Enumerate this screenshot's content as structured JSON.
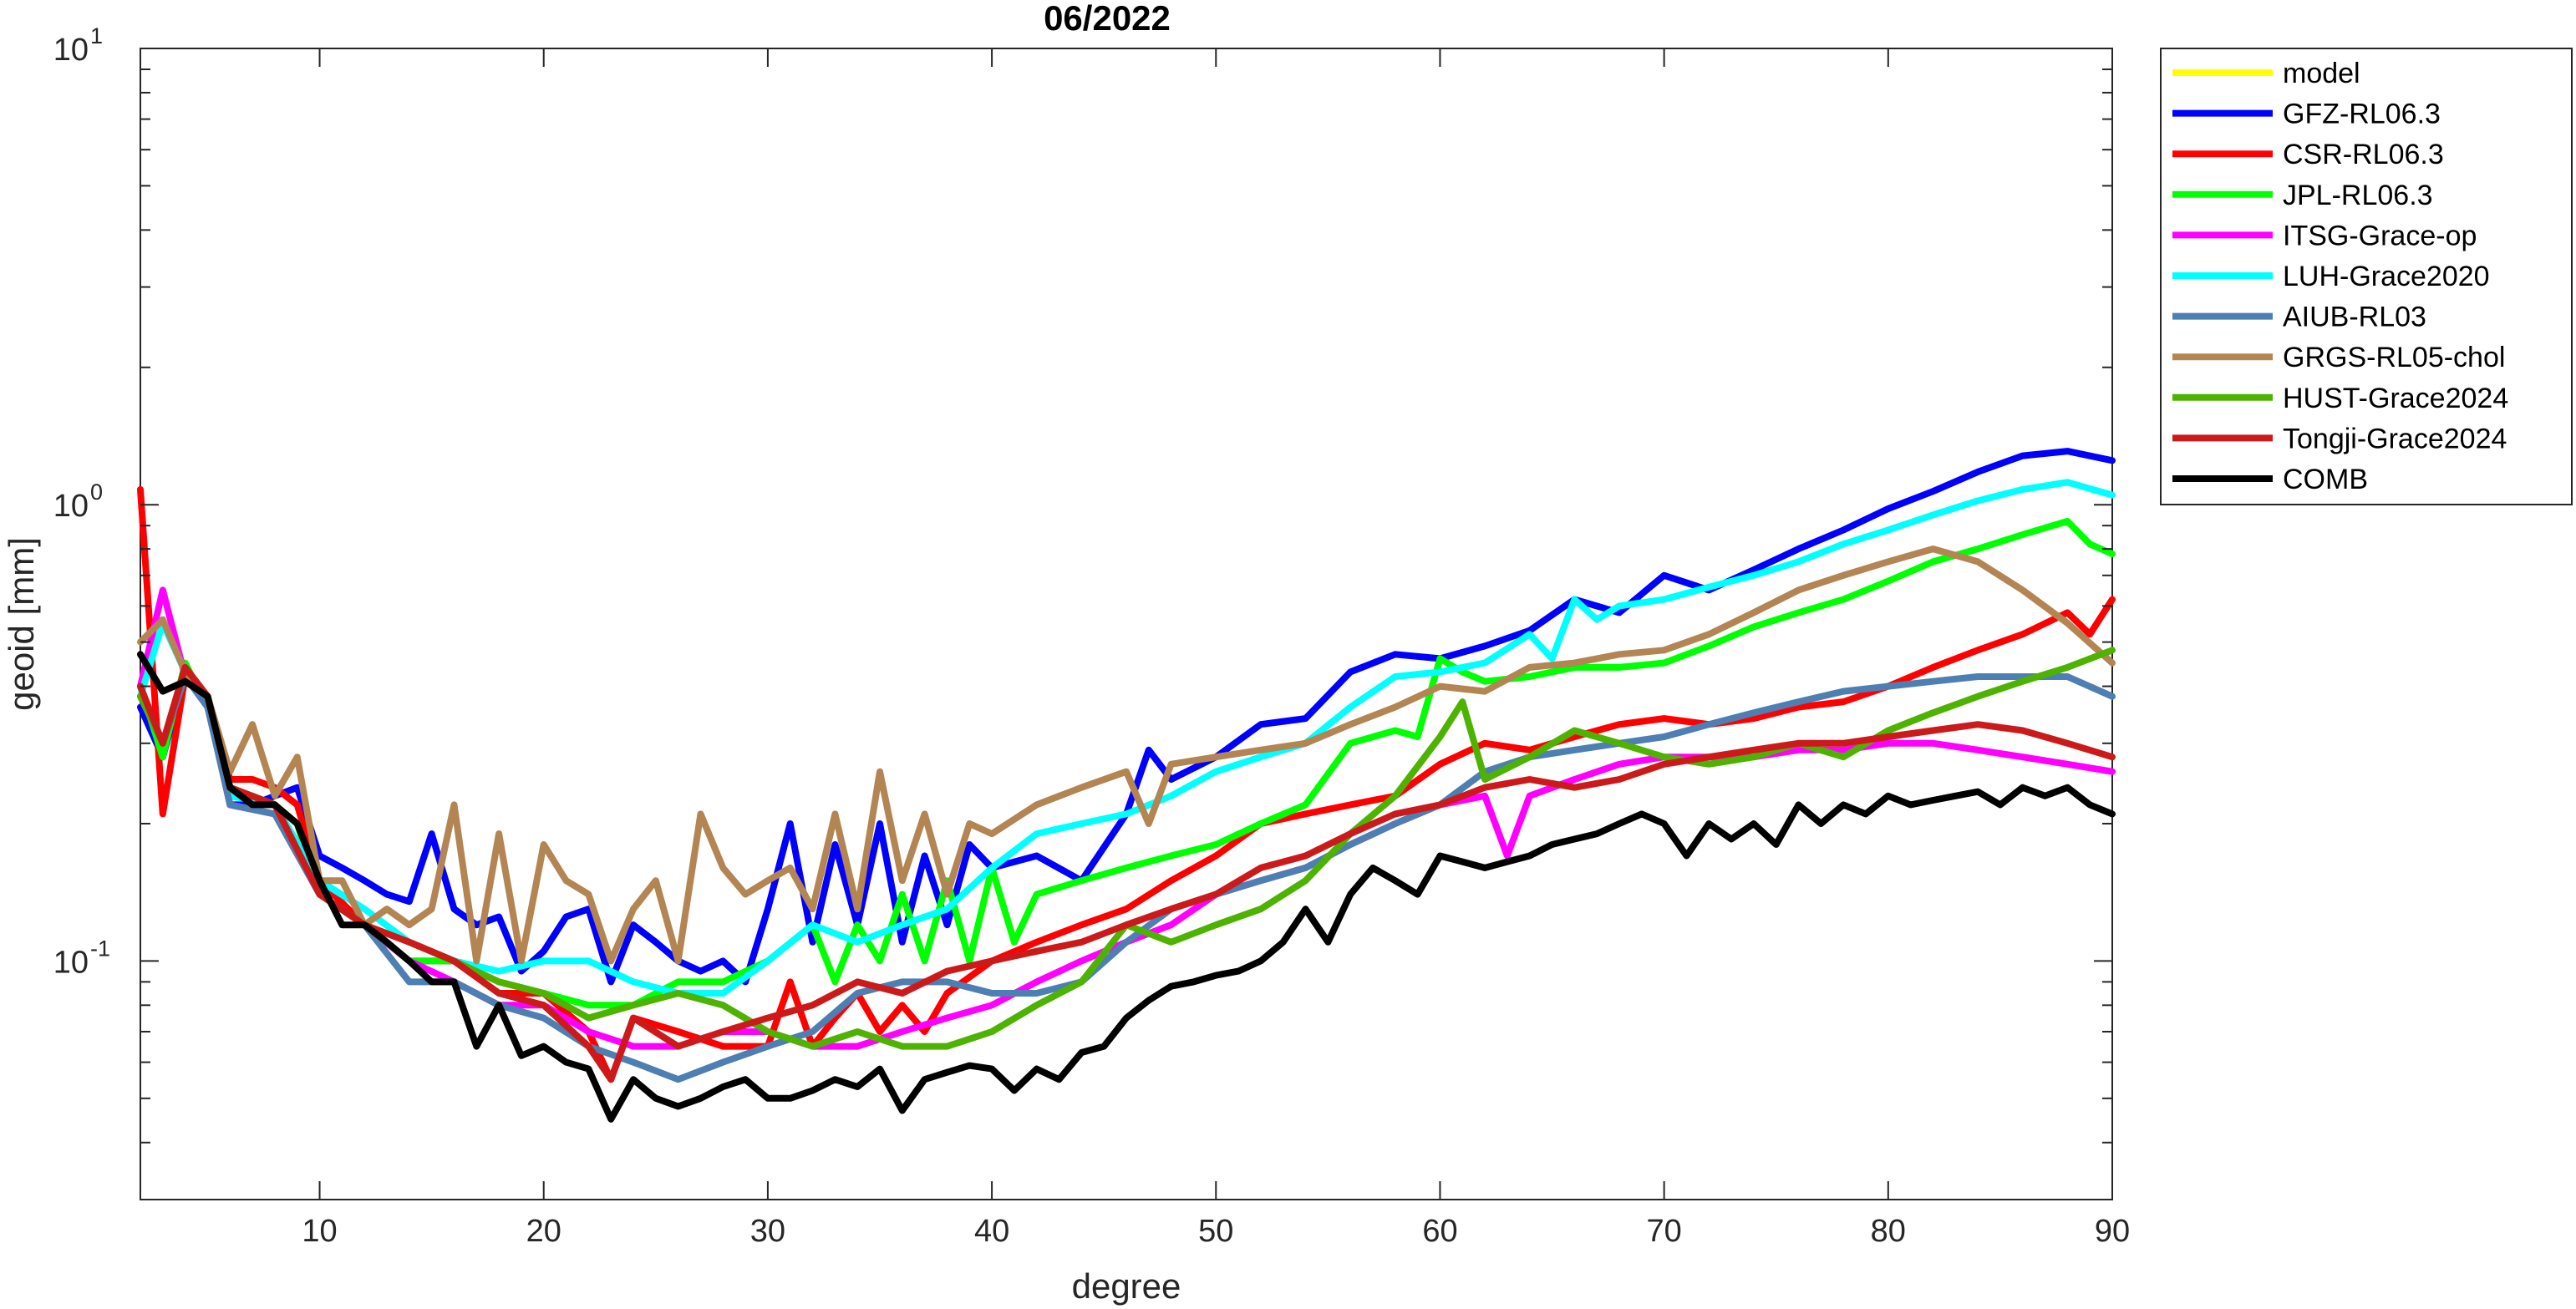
{
  "chart_data": {
    "type": "line",
    "title": "06/2022",
    "xlabel": "degree",
    "ylabel": "geoid [mm]",
    "xlim": [
      2,
      90
    ],
    "ylim": [
      0.03,
      10
    ],
    "yscale": "log",
    "x_ticks": [
      10,
      20,
      30,
      40,
      50,
      60,
      70,
      80,
      90
    ],
    "y_ticks": [
      {
        "value": 0.1,
        "base": "10",
        "exp": "-1"
      },
      {
        "value": 1,
        "base": "10",
        "exp": "0"
      },
      {
        "value": 10,
        "base": "10",
        "exp": "1"
      }
    ],
    "grid": false,
    "legend_position": "outside-top-right",
    "series": [
      {
        "name": "model",
        "color": "#ffff00",
        "x": [],
        "y": []
      },
      {
        "name": "GFZ-RL06.3",
        "color": "#0000ff",
        "x": [
          2,
          3,
          4,
          5,
          6,
          7,
          8,
          9,
          10,
          11,
          12,
          13,
          14,
          15,
          16,
          17,
          18,
          19,
          20,
          21,
          22,
          23,
          24,
          25,
          26,
          27,
          28,
          29,
          30,
          31,
          32,
          33,
          34,
          35,
          36,
          37,
          38,
          39,
          40,
          42,
          44,
          46,
          47,
          48,
          50,
          52,
          54,
          56,
          58,
          60,
          62,
          64,
          66,
          68,
          70,
          72,
          74,
          76,
          78,
          80,
          82,
          84,
          86,
          88,
          90
        ],
        "y": [
          0.36,
          0.28,
          0.42,
          0.37,
          0.22,
          0.22,
          0.23,
          0.24,
          0.17,
          0.16,
          0.15,
          0.14,
          0.135,
          0.19,
          0.13,
          0.12,
          0.125,
          0.095,
          0.105,
          0.125,
          0.13,
          0.09,
          0.12,
          0.11,
          0.1,
          0.095,
          0.1,
          0.09,
          0.13,
          0.2,
          0.11,
          0.18,
          0.12,
          0.2,
          0.11,
          0.17,
          0.12,
          0.18,
          0.16,
          0.17,
          0.15,
          0.21,
          0.29,
          0.25,
          0.28,
          0.33,
          0.34,
          0.43,
          0.47,
          0.46,
          0.49,
          0.53,
          0.62,
          0.58,
          0.7,
          0.65,
          0.72,
          0.8,
          0.88,
          0.98,
          1.07,
          1.18,
          1.28,
          1.31,
          1.25
        ]
      },
      {
        "name": "CSR-RL06.3",
        "color": "#ff0000",
        "x": [
          2,
          3,
          4,
          5,
          6,
          7,
          8,
          9,
          10,
          12,
          14,
          16,
          18,
          20,
          22,
          23,
          24,
          26,
          28,
          30,
          31,
          32,
          33,
          34,
          35,
          36,
          37,
          38,
          40,
          42,
          44,
          46,
          48,
          50,
          52,
          54,
          56,
          58,
          60,
          62,
          64,
          66,
          68,
          70,
          72,
          74,
          76,
          78,
          80,
          82,
          84,
          86,
          88,
          89,
          90
        ],
        "y": [
          1.08,
          0.21,
          0.42,
          0.38,
          0.25,
          0.25,
          0.24,
          0.22,
          0.15,
          0.12,
          0.1,
          0.1,
          0.085,
          0.085,
          0.07,
          0.055,
          0.075,
          0.07,
          0.065,
          0.065,
          0.09,
          0.065,
          0.075,
          0.085,
          0.07,
          0.08,
          0.07,
          0.085,
          0.1,
          0.11,
          0.12,
          0.13,
          0.15,
          0.17,
          0.2,
          0.21,
          0.22,
          0.23,
          0.27,
          0.3,
          0.29,
          0.31,
          0.33,
          0.34,
          0.33,
          0.34,
          0.36,
          0.37,
          0.4,
          0.44,
          0.48,
          0.52,
          0.58,
          0.52,
          0.62
        ]
      },
      {
        "name": "JPL-RL06.3",
        "color": "#00ff00",
        "x": [
          2,
          3,
          4,
          5,
          6,
          7,
          8,
          9,
          10,
          12,
          14,
          16,
          18,
          20,
          22,
          24,
          26,
          28,
          30,
          32,
          33,
          34,
          35,
          36,
          37,
          38,
          39,
          40,
          41,
          42,
          44,
          46,
          48,
          50,
          52,
          54,
          56,
          58,
          59,
          60,
          61,
          62,
          64,
          66,
          68,
          70,
          72,
          74,
          76,
          78,
          80,
          82,
          84,
          86,
          88,
          89,
          90
        ],
        "y": [
          0.4,
          0.28,
          0.45,
          0.36,
          0.23,
          0.23,
          0.22,
          0.2,
          0.14,
          0.12,
          0.1,
          0.1,
          0.09,
          0.085,
          0.08,
          0.08,
          0.09,
          0.09,
          0.1,
          0.12,
          0.09,
          0.12,
          0.1,
          0.14,
          0.1,
          0.15,
          0.1,
          0.16,
          0.11,
          0.14,
          0.15,
          0.16,
          0.17,
          0.18,
          0.2,
          0.22,
          0.3,
          0.32,
          0.31,
          0.46,
          0.43,
          0.41,
          0.42,
          0.44,
          0.44,
          0.45,
          0.49,
          0.54,
          0.58,
          0.62,
          0.68,
          0.75,
          0.8,
          0.86,
          0.92,
          0.82,
          0.78
        ]
      },
      {
        "name": "ITSG-Grace-op",
        "color": "#ff00ff",
        "x": [
          2,
          3,
          4,
          5,
          6,
          8,
          10,
          12,
          14,
          16,
          18,
          20,
          22,
          24,
          26,
          28,
          30,
          32,
          34,
          36,
          38,
          40,
          42,
          44,
          46,
          48,
          50,
          52,
          54,
          56,
          58,
          60,
          62,
          63,
          64,
          66,
          68,
          70,
          72,
          74,
          76,
          78,
          80,
          82,
          84,
          86,
          88,
          90
        ],
        "y": [
          0.4,
          0.65,
          0.42,
          0.37,
          0.22,
          0.21,
          0.14,
          0.12,
          0.1,
          0.09,
          0.08,
          0.08,
          0.07,
          0.065,
          0.065,
          0.07,
          0.07,
          0.065,
          0.065,
          0.07,
          0.075,
          0.08,
          0.09,
          0.1,
          0.11,
          0.12,
          0.14,
          0.15,
          0.16,
          0.18,
          0.2,
          0.22,
          0.23,
          0.17,
          0.23,
          0.25,
          0.27,
          0.28,
          0.28,
          0.28,
          0.29,
          0.29,
          0.3,
          0.3,
          0.29,
          0.28,
          0.27,
          0.26
        ]
      },
      {
        "name": "LUH-Grace2020",
        "color": "#00ffff",
        "x": [
          2,
          3,
          4,
          5,
          6,
          8,
          10,
          12,
          14,
          16,
          18,
          20,
          22,
          24,
          26,
          28,
          30,
          32,
          34,
          36,
          38,
          40,
          42,
          44,
          46,
          48,
          50,
          52,
          54,
          56,
          58,
          60,
          62,
          64,
          65,
          66,
          67,
          68,
          70,
          72,
          74,
          76,
          78,
          80,
          82,
          84,
          86,
          88,
          90
        ],
        "y": [
          0.38,
          0.55,
          0.43,
          0.38,
          0.23,
          0.22,
          0.15,
          0.13,
          0.11,
          0.1,
          0.095,
          0.1,
          0.1,
          0.09,
          0.085,
          0.085,
          0.1,
          0.12,
          0.11,
          0.12,
          0.13,
          0.16,
          0.19,
          0.2,
          0.21,
          0.23,
          0.26,
          0.28,
          0.3,
          0.36,
          0.42,
          0.43,
          0.45,
          0.52,
          0.46,
          0.62,
          0.56,
          0.6,
          0.62,
          0.66,
          0.7,
          0.75,
          0.82,
          0.88,
          0.95,
          1.02,
          1.08,
          1.12,
          1.05
        ]
      },
      {
        "name": "AIUB-RL03",
        "color": "#4d7fb3",
        "x": [
          2,
          3,
          4,
          5,
          6,
          8,
          10,
          12,
          14,
          16,
          18,
          20,
          22,
          24,
          26,
          28,
          30,
          32,
          34,
          36,
          38,
          40,
          42,
          44,
          46,
          48,
          50,
          52,
          54,
          56,
          58,
          60,
          62,
          64,
          66,
          68,
          70,
          72,
          74,
          76,
          78,
          80,
          82,
          84,
          86,
          88,
          90
        ],
        "y": [
          0.38,
          0.3,
          0.42,
          0.36,
          0.22,
          0.21,
          0.14,
          0.12,
          0.09,
          0.09,
          0.08,
          0.075,
          0.065,
          0.06,
          0.055,
          0.06,
          0.065,
          0.07,
          0.085,
          0.09,
          0.09,
          0.085,
          0.085,
          0.09,
          0.11,
          0.13,
          0.14,
          0.15,
          0.16,
          0.18,
          0.2,
          0.22,
          0.26,
          0.28,
          0.29,
          0.3,
          0.31,
          0.33,
          0.35,
          0.37,
          0.39,
          0.4,
          0.41,
          0.42,
          0.42,
          0.42,
          0.38
        ]
      },
      {
        "name": "GRGS-RL05-chol",
        "color": "#b38552",
        "x": [
          2,
          3,
          4,
          5,
          6,
          7,
          8,
          9,
          10,
          11,
          12,
          13,
          14,
          15,
          16,
          17,
          18,
          19,
          20,
          21,
          22,
          23,
          24,
          25,
          26,
          27,
          28,
          29,
          30,
          31,
          32,
          33,
          34,
          35,
          36,
          37,
          38,
          39,
          40,
          42,
          44,
          46,
          47,
          48,
          50,
          52,
          54,
          56,
          58,
          60,
          62,
          64,
          66,
          68,
          70,
          72,
          74,
          76,
          78,
          80,
          82,
          84,
          86,
          88,
          90
        ],
        "y": [
          0.5,
          0.56,
          0.43,
          0.38,
          0.26,
          0.33,
          0.23,
          0.28,
          0.15,
          0.15,
          0.12,
          0.13,
          0.12,
          0.13,
          0.22,
          0.1,
          0.19,
          0.1,
          0.18,
          0.15,
          0.14,
          0.1,
          0.13,
          0.15,
          0.1,
          0.21,
          0.16,
          0.14,
          0.15,
          0.16,
          0.13,
          0.21,
          0.13,
          0.26,
          0.15,
          0.21,
          0.14,
          0.2,
          0.19,
          0.22,
          0.24,
          0.26,
          0.2,
          0.27,
          0.28,
          0.29,
          0.3,
          0.33,
          0.36,
          0.4,
          0.39,
          0.44,
          0.45,
          0.47,
          0.48,
          0.52,
          0.58,
          0.65,
          0.7,
          0.75,
          0.8,
          0.75,
          0.65,
          0.55,
          0.45
        ]
      },
      {
        "name": "HUST-Grace2024",
        "color": "#4db300",
        "x": [
          2,
          3,
          4,
          5,
          6,
          8,
          10,
          12,
          14,
          16,
          18,
          20,
          22,
          24,
          26,
          28,
          30,
          32,
          34,
          36,
          38,
          40,
          42,
          44,
          46,
          48,
          50,
          52,
          54,
          56,
          58,
          60,
          61,
          62,
          64,
          66,
          68,
          70,
          72,
          74,
          76,
          78,
          80,
          82,
          84,
          86,
          88,
          90
        ],
        "y": [
          0.38,
          0.3,
          0.44,
          0.38,
          0.24,
          0.22,
          0.14,
          0.12,
          0.11,
          0.1,
          0.09,
          0.085,
          0.075,
          0.08,
          0.085,
          0.08,
          0.07,
          0.065,
          0.07,
          0.065,
          0.065,
          0.07,
          0.08,
          0.09,
          0.12,
          0.11,
          0.12,
          0.13,
          0.15,
          0.19,
          0.23,
          0.31,
          0.37,
          0.25,
          0.28,
          0.32,
          0.3,
          0.28,
          0.27,
          0.28,
          0.3,
          0.28,
          0.32,
          0.35,
          0.38,
          0.41,
          0.44,
          0.48
        ]
      },
      {
        "name": "Tongji-Grace2024",
        "color": "#cc1a1a",
        "x": [
          2,
          3,
          4,
          5,
          6,
          8,
          10,
          12,
          14,
          16,
          18,
          20,
          22,
          23,
          24,
          26,
          28,
          30,
          32,
          34,
          36,
          38,
          40,
          42,
          44,
          46,
          48,
          50,
          52,
          54,
          56,
          58,
          60,
          62,
          64,
          66,
          68,
          70,
          72,
          74,
          76,
          78,
          80,
          82,
          84,
          86,
          88,
          90
        ],
        "y": [
          0.4,
          0.3,
          0.44,
          0.38,
          0.24,
          0.22,
          0.14,
          0.12,
          0.11,
          0.1,
          0.085,
          0.08,
          0.065,
          0.055,
          0.075,
          0.065,
          0.07,
          0.075,
          0.08,
          0.09,
          0.085,
          0.095,
          0.1,
          0.105,
          0.11,
          0.12,
          0.13,
          0.14,
          0.16,
          0.17,
          0.19,
          0.21,
          0.22,
          0.24,
          0.25,
          0.24,
          0.25,
          0.27,
          0.28,
          0.29,
          0.3,
          0.3,
          0.31,
          0.32,
          0.33,
          0.32,
          0.3,
          0.28
        ]
      },
      {
        "name": "COMB",
        "color": "#000000",
        "x": [
          2,
          3,
          4,
          5,
          6,
          7,
          8,
          9,
          10,
          11,
          12,
          13,
          14,
          15,
          16,
          17,
          18,
          19,
          20,
          21,
          22,
          23,
          24,
          25,
          26,
          27,
          28,
          29,
          30,
          31,
          32,
          33,
          34,
          35,
          36,
          37,
          38,
          39,
          40,
          41,
          42,
          43,
          44,
          45,
          46,
          47,
          48,
          49,
          50,
          51,
          52,
          53,
          54,
          55,
          56,
          57,
          58,
          59,
          60,
          61,
          62,
          63,
          64,
          65,
          66,
          67,
          68,
          69,
          70,
          71,
          72,
          73,
          74,
          75,
          76,
          77,
          78,
          79,
          80,
          81,
          82,
          83,
          84,
          85,
          86,
          87,
          88,
          89,
          90
        ],
        "y": [
          0.47,
          0.39,
          0.41,
          0.38,
          0.24,
          0.22,
          0.22,
          0.2,
          0.15,
          0.12,
          0.12,
          0.11,
          0.1,
          0.09,
          0.09,
          0.065,
          0.08,
          0.062,
          0.065,
          0.06,
          0.058,
          0.045,
          0.055,
          0.05,
          0.048,
          0.05,
          0.053,
          0.055,
          0.05,
          0.05,
          0.052,
          0.055,
          0.053,
          0.058,
          0.047,
          0.055,
          0.057,
          0.059,
          0.058,
          0.052,
          0.058,
          0.055,
          0.063,
          0.065,
          0.075,
          0.082,
          0.088,
          0.09,
          0.093,
          0.095,
          0.1,
          0.11,
          0.13,
          0.11,
          0.14,
          0.16,
          0.15,
          0.14,
          0.17,
          0.165,
          0.16,
          0.165,
          0.17,
          0.18,
          0.185,
          0.19,
          0.2,
          0.21,
          0.2,
          0.17,
          0.2,
          0.185,
          0.2,
          0.18,
          0.22,
          0.2,
          0.22,
          0.21,
          0.23,
          0.22,
          0.225,
          0.23,
          0.235,
          0.22,
          0.24,
          0.23,
          0.24,
          0.22,
          0.21
        ]
      }
    ]
  }
}
